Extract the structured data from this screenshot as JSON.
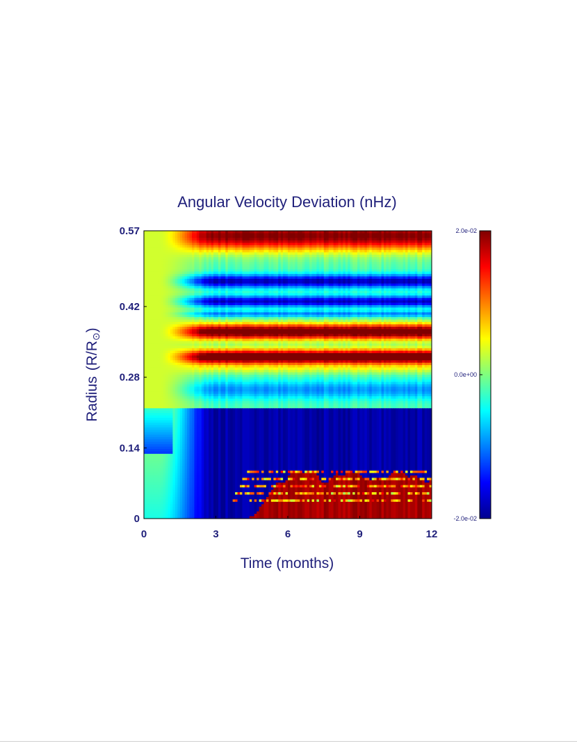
{
  "chart_data": {
    "type": "heatmap",
    "title": "Angular Velocity Deviation (nHz)",
    "xlabel": "Time (months)",
    "ylabel_text": "Radius",
    "ylabel_unit": "(R/R",
    "ylabel_sub": "⊙",
    "ylabel_close": ")",
    "x_ticks": [
      "0",
      "3",
      "6",
      "9",
      "12"
    ],
    "y_ticks": [
      "0",
      "0.14",
      "0.28",
      "0.42",
      "0.57"
    ],
    "xlim": [
      0,
      12
    ],
    "ylim": [
      0,
      0.57
    ],
    "colorbar": {
      "ticks": [
        "2.0e-02",
        "0.0e+00",
        "-2.0e-02"
      ],
      "range": [
        -0.02,
        0.02
      ],
      "colormap": "jet"
    },
    "grid": false
  },
  "colors": {
    "text": "#1f1f7a",
    "axes": "#000000"
  }
}
